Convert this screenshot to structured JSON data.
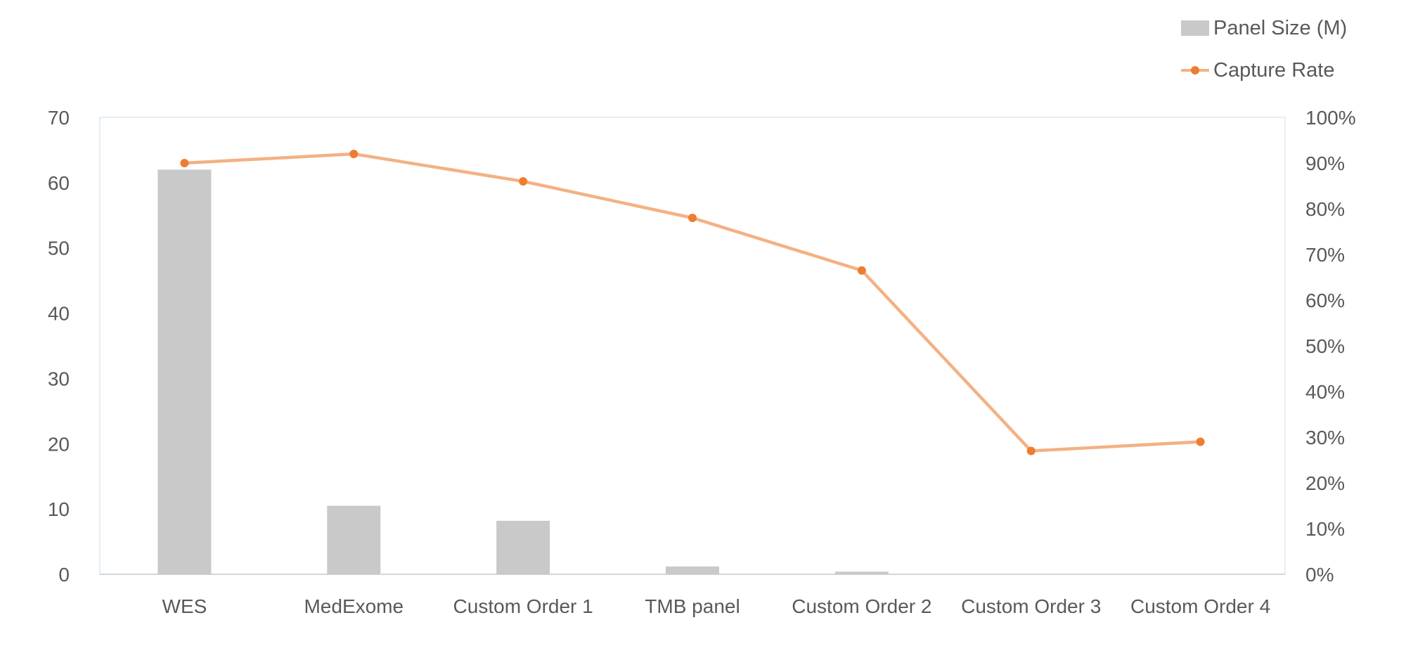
{
  "chart_data": {
    "type": "bar+line",
    "title": "",
    "categories": [
      "WES",
      "MedExome",
      "Custom Order 1",
      "TMB panel",
      "Custom Order 2",
      "Custom Order 3",
      "Custom Order 4"
    ],
    "series": [
      {
        "name": "Panel Size (M)",
        "type": "bar",
        "axis": "left",
        "color": "#c9c9c9",
        "values": [
          62,
          10.5,
          8.2,
          1.2,
          0.4,
          0,
          0
        ]
      },
      {
        "name": "Capture Rate",
        "type": "line",
        "axis": "right",
        "color": "#f4b183",
        "marker_color": "#ed7d31",
        "values": [
          0.9,
          0.92,
          0.86,
          0.78,
          0.665,
          0.27,
          0.29
        ]
      }
    ],
    "y_left": {
      "min": 0,
      "max": 70,
      "step": 10,
      "ticks": [
        "0",
        "10",
        "20",
        "30",
        "40",
        "50",
        "60",
        "70"
      ]
    },
    "y_right": {
      "min": 0,
      "max": 1,
      "step": 0.1,
      "ticks": [
        "0%",
        "10%",
        "20%",
        "30%",
        "40%",
        "50%",
        "60%",
        "70%",
        "80%",
        "90%",
        "100%"
      ]
    },
    "grid": false,
    "legend_position": "top-right"
  },
  "legend": {
    "bar_label": "Panel Size (M)",
    "line_label": "Capture Rate"
  }
}
